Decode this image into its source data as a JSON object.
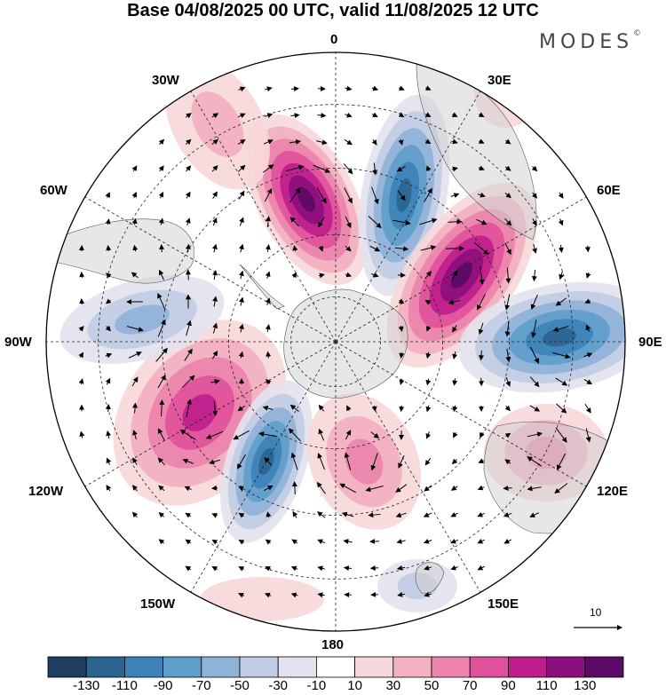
{
  "title": "Base 04/08/2025 00 UTC, valid 11/08/2025 12 UTC",
  "brand": {
    "name": "MODES",
    "mark": "©"
  },
  "map": {
    "projection": "south-polar-stereographic",
    "meridian_labels": {
      "lon_0": "0",
      "lon_30e": "30E",
      "lon_60e": "60E",
      "lon_90e": "90E",
      "lon_120e": "120E",
      "lon_150e": "150E",
      "lon_180": "180",
      "lon_150w": "150W",
      "lon_120w": "120W",
      "lon_90w": "90W",
      "lon_60w": "60W",
      "lon_30w": "30W"
    },
    "field": "anomaly (shaded) with wind vectors",
    "reference_vector": "10"
  },
  "colorbar": {
    "colors": [
      "#1d3e5e",
      "#2a6592",
      "#3c82b8",
      "#5f9ecb",
      "#8fb3d8",
      "#c1cce3",
      "#e3e3ef",
      "#ffffff",
      "#f7d8da",
      "#f2b0c0",
      "#ec84ad",
      "#e0519b",
      "#be1d8c",
      "#8c0f7d",
      "#5c0a66"
    ],
    "ticks": [
      "-130",
      "-110",
      "-90",
      "-70",
      "-50",
      "-30",
      "-10",
      "10",
      "30",
      "50",
      "70",
      "90",
      "110",
      "130"
    ]
  },
  "anomalies": [
    {
      "sign": "positive",
      "intensity": 130,
      "location": "near 0-15W, 40-55S"
    },
    {
      "sign": "negative",
      "intensity": -110,
      "location": "near 15-25E, 40-55S"
    },
    {
      "sign": "positive",
      "intensity": 130,
      "location": "near 45E, 50S"
    },
    {
      "sign": "negative",
      "intensity": -110,
      "location": "near 90E, 45S"
    },
    {
      "sign": "positive",
      "intensity": 50,
      "location": "near 120E, 40S"
    },
    {
      "sign": "positive",
      "intensity": 90,
      "location": "near 115W, 55S"
    },
    {
      "sign": "negative",
      "intensity": -110,
      "location": "near 150W, 55S"
    },
    {
      "sign": "positive",
      "intensity": 50,
      "location": "near 170E, 55S"
    }
  ]
}
